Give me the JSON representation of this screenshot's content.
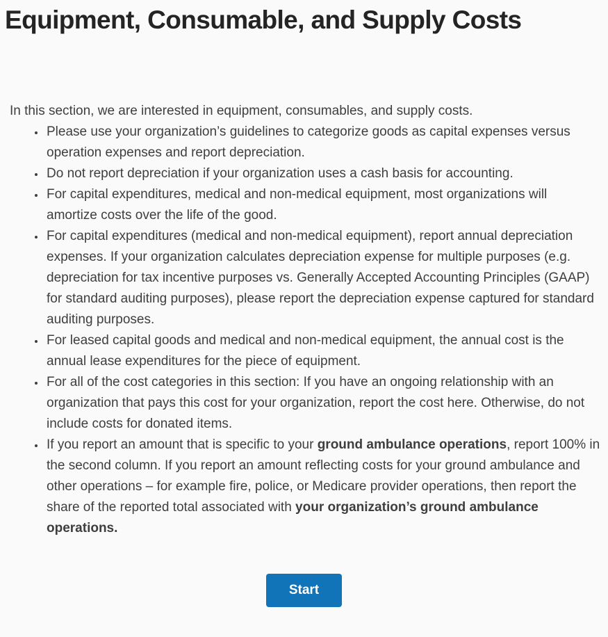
{
  "page": {
    "title": "Equipment, Consumable, and Supply Costs",
    "background_color": "#fafafa",
    "title_color": "#242424",
    "text_color": "#3e3e3e"
  },
  "instructions": {
    "intro": "In this section, we are interested in equipment, consumables, and supply costs.",
    "bullets": [
      {
        "text": "Please use your organization’s guidelines to categorize goods as capital expenses versus operation expenses and report depreciation."
      },
      {
        "text": "Do not report depreciation if your organization uses a cash basis for accounting."
      },
      {
        "text": "For capital expenditures, medical and non-medical equipment, most organizations will amortize costs over the life of the good."
      },
      {
        "text": "For capital expenditures (medical and non-medical equipment), report annual depreciation expenses. If your organization calculates depreciation expense for multiple purposes (e.g. depreciation for tax incentive purposes vs. Generally Accepted Accounting Principles (GAAP) for standard auditing purposes), please report the depreciation expense captured for standard auditing purposes."
      },
      {
        "text": "For leased capital goods and medical and non-medical equipment, the annual cost is the annual lease expenditures for the piece of equipment."
      },
      {
        "text": "For all of the cost categories in this section: If you have an ongoing relationship with an organization that pays this cost for your organization, report the cost here. Otherwise, do not include costs for donated items."
      },
      {
        "segments": [
          {
            "text": "If you report an amount that is specific to your ",
            "bold": false
          },
          {
            "text": "ground ambulance operations",
            "bold": true
          },
          {
            "text": ", report 100% in the second column. If you report an amount reflecting costs for your ground ambulance and other operations – for example fire, police, or Medicare provider operations, then report the share of the reported total associated with ",
            "bold": false
          },
          {
            "text": "your organization’s ground ambulance operations.",
            "bold": true
          }
        ]
      }
    ]
  },
  "actions": {
    "start_label": "Start",
    "button_color": "#1173b8"
  }
}
